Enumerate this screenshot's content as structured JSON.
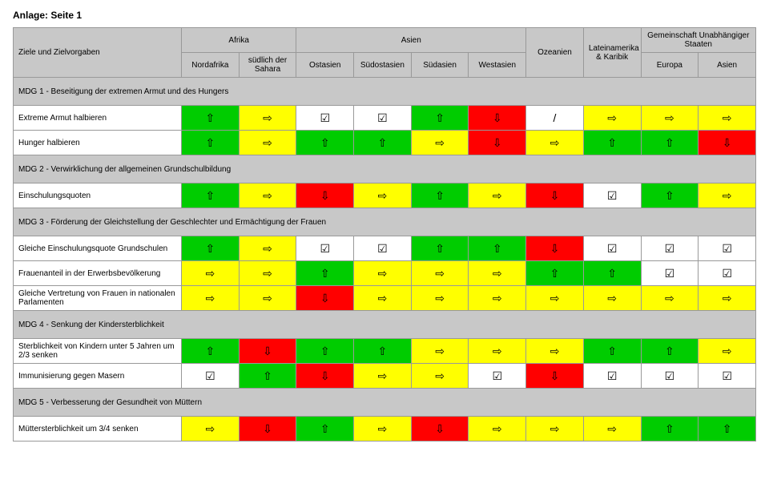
{
  "title": "Anlage: Seite 1",
  "headers": {
    "top": {
      "afrika": "Afrika",
      "asien": "Asien",
      "gus": "Gemeinschaft Unabhängiger Staaten"
    },
    "sub": {
      "ziele": "Ziele und Zielvorgaben",
      "nordafrika": "Nordafrika",
      "sahara": "südlich der Sahara",
      "ostasien": "Ostasien",
      "suedostasien": "Südostasien",
      "suedasien": "Südasien",
      "westasien": "Westasien",
      "ozeanien": "Ozeanien",
      "lateinamerika": "Lateinamerika & Karibik",
      "europa": "Europa",
      "asien2": "Asien"
    }
  },
  "sections": [
    {
      "header": "MDG 1 - Beseitigung der extremen Armut und des Hungers",
      "rows": [
        {
          "label": "Extreme Armut halbieren",
          "cells": [
            [
              "green",
              "up"
            ],
            [
              "yellow",
              "right"
            ],
            [
              "white",
              "check"
            ],
            [
              "white",
              "check"
            ],
            [
              "green",
              "up"
            ],
            [
              "red",
              "down"
            ],
            [
              "white",
              "slash"
            ],
            [
              "yellow",
              "right"
            ],
            [
              "yellow",
              "right"
            ],
            [
              "yellow",
              "right"
            ]
          ]
        },
        {
          "label": "Hunger halbieren",
          "cells": [
            [
              "green",
              "up"
            ],
            [
              "yellow",
              "right"
            ],
            [
              "green",
              "up"
            ],
            [
              "green",
              "up"
            ],
            [
              "yellow",
              "right"
            ],
            [
              "red",
              "down"
            ],
            [
              "yellow",
              "right"
            ],
            [
              "green",
              "up"
            ],
            [
              "green",
              "up"
            ],
            [
              "red",
              "down"
            ]
          ]
        }
      ]
    },
    {
      "header": "MDG 2 - Verwirklichung der allgemeinen Grundschulbildung",
      "rows": [
        {
          "label": "Einschulungsquoten",
          "cells": [
            [
              "green",
              "up"
            ],
            [
              "yellow",
              "right"
            ],
            [
              "red",
              "down"
            ],
            [
              "yellow",
              "right"
            ],
            [
              "green",
              "up"
            ],
            [
              "yellow",
              "right"
            ],
            [
              "red",
              "down"
            ],
            [
              "white",
              "check"
            ],
            [
              "green",
              "up"
            ],
            [
              "yellow",
              "right"
            ]
          ]
        }
      ]
    },
    {
      "header": "MDG 3 - Förderung der Gleichstellung der Geschlechter und Ermächtigung der Frauen",
      "rows": [
        {
          "label": "Gleiche Einschulungsquote Grundschulen",
          "cells": [
            [
              "green",
              "up"
            ],
            [
              "yellow",
              "right"
            ],
            [
              "white",
              "check"
            ],
            [
              "white",
              "check"
            ],
            [
              "green",
              "up"
            ],
            [
              "green",
              "up"
            ],
            [
              "red",
              "down"
            ],
            [
              "white",
              "check"
            ],
            [
              "white",
              "check"
            ],
            [
              "white",
              "check"
            ]
          ]
        },
        {
          "label": "Frauenanteil in der Erwerbsbevölkerung",
          "cells": [
            [
              "yellow",
              "right"
            ],
            [
              "yellow",
              "right"
            ],
            [
              "green",
              "up"
            ],
            [
              "yellow",
              "right"
            ],
            [
              "yellow",
              "right"
            ],
            [
              "yellow",
              "right"
            ],
            [
              "green",
              "up"
            ],
            [
              "green",
              "up"
            ],
            [
              "white",
              "check"
            ],
            [
              "white",
              "check"
            ]
          ]
        },
        {
          "label": "Gleiche Vertretung von Frauen in nationalen Parlamenten",
          "cells": [
            [
              "yellow",
              "right"
            ],
            [
              "yellow",
              "right"
            ],
            [
              "red",
              "down"
            ],
            [
              "yellow",
              "right"
            ],
            [
              "yellow",
              "right"
            ],
            [
              "yellow",
              "right"
            ],
            [
              "yellow",
              "right"
            ],
            [
              "yellow",
              "right"
            ],
            [
              "yellow",
              "right"
            ],
            [
              "yellow",
              "right"
            ]
          ]
        }
      ]
    },
    {
      "header": "MDG 4 - Senkung der Kindersterblichkeit",
      "rows": [
        {
          "label": "Sterblichkeit von Kindern unter 5 Jahren um 2/3 senken",
          "cells": [
            [
              "green",
              "up"
            ],
            [
              "red",
              "down"
            ],
            [
              "green",
              "up"
            ],
            [
              "green",
              "up"
            ],
            [
              "yellow",
              "right"
            ],
            [
              "yellow",
              "right"
            ],
            [
              "yellow",
              "right"
            ],
            [
              "green",
              "up"
            ],
            [
              "green",
              "up"
            ],
            [
              "yellow",
              "right"
            ]
          ]
        },
        {
          "label": "Immunisierung gegen Masern",
          "cells": [
            [
              "white",
              "check"
            ],
            [
              "green",
              "up"
            ],
            [
              "red",
              "down"
            ],
            [
              "yellow",
              "right"
            ],
            [
              "yellow",
              "right"
            ],
            [
              "white",
              "check"
            ],
            [
              "red",
              "down"
            ],
            [
              "white",
              "check"
            ],
            [
              "white",
              "check"
            ],
            [
              "white",
              "check"
            ]
          ]
        }
      ]
    },
    {
      "header": "MDG 5 - Verbesserung der Gesundheit von Müttern",
      "rows": [
        {
          "label": "Müttersterblichkeit um 3/4 senken",
          "cells": [
            [
              "yellow",
              "right"
            ],
            [
              "red",
              "down"
            ],
            [
              "green",
              "up"
            ],
            [
              "yellow",
              "right"
            ],
            [
              "red",
              "down"
            ],
            [
              "yellow",
              "right"
            ],
            [
              "yellow",
              "right"
            ],
            [
              "yellow",
              "right"
            ],
            [
              "green",
              "up"
            ],
            [
              "green",
              "up"
            ]
          ]
        }
      ]
    }
  ],
  "symbols": {
    "up": "⇧",
    "down": "⇩",
    "right": "⇨",
    "check": "☑",
    "slash": "/"
  },
  "colors": {
    "green": "#00cc00",
    "yellow": "#ffff00",
    "red": "#ff0000",
    "white": "#ffffff",
    "header": "#c8c8c8",
    "border": "#999999"
  }
}
